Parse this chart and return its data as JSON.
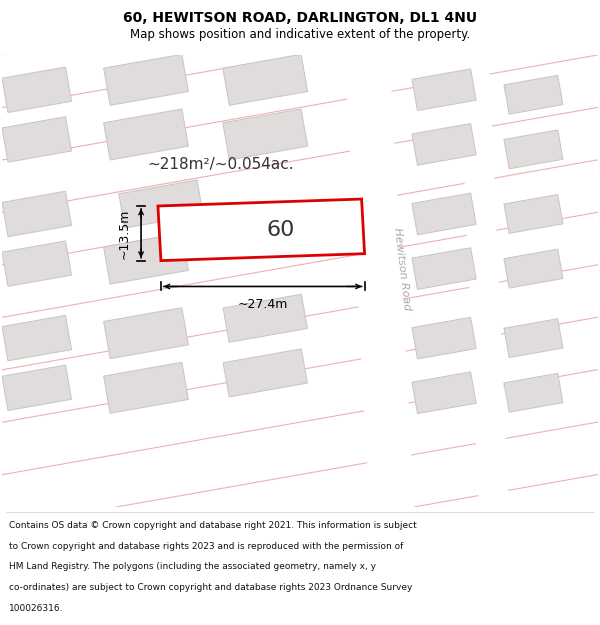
{
  "title": "60, HEWITSON ROAD, DARLINGTON, DL1 4NU",
  "subtitle": "Map shows position and indicative extent of the property.",
  "footer_lines": [
    "Contains OS data © Crown copyright and database right 2021. This information is subject",
    "to Crown copyright and database rights 2023 and is reproduced with the permission of",
    "HM Land Registry. The polygons (including the associated geometry, namely x, y",
    "co-ordinates) are subject to Crown copyright and database rights 2023 Ordnance Survey",
    "100026316."
  ],
  "map_bg": "#f7f5f5",
  "road_label": "Hewitson Road",
  "area_label": "~218m²/~0.054ac.",
  "plot_number": "60",
  "dim_width": "~27.4m",
  "dim_height": "~13.5m",
  "plot_color": "#dd0000",
  "plot_fill": "#ffffff",
  "road_line_color": "#f0b0b0",
  "building_fill": "#e0dcdc",
  "building_stroke": "#c8c4c4",
  "road_band_color": "#ffffff",
  "title_fontsize": 10,
  "subtitle_fontsize": 8.5,
  "footer_fontsize": 6.5,
  "road_label_color": "#aaaaaa"
}
